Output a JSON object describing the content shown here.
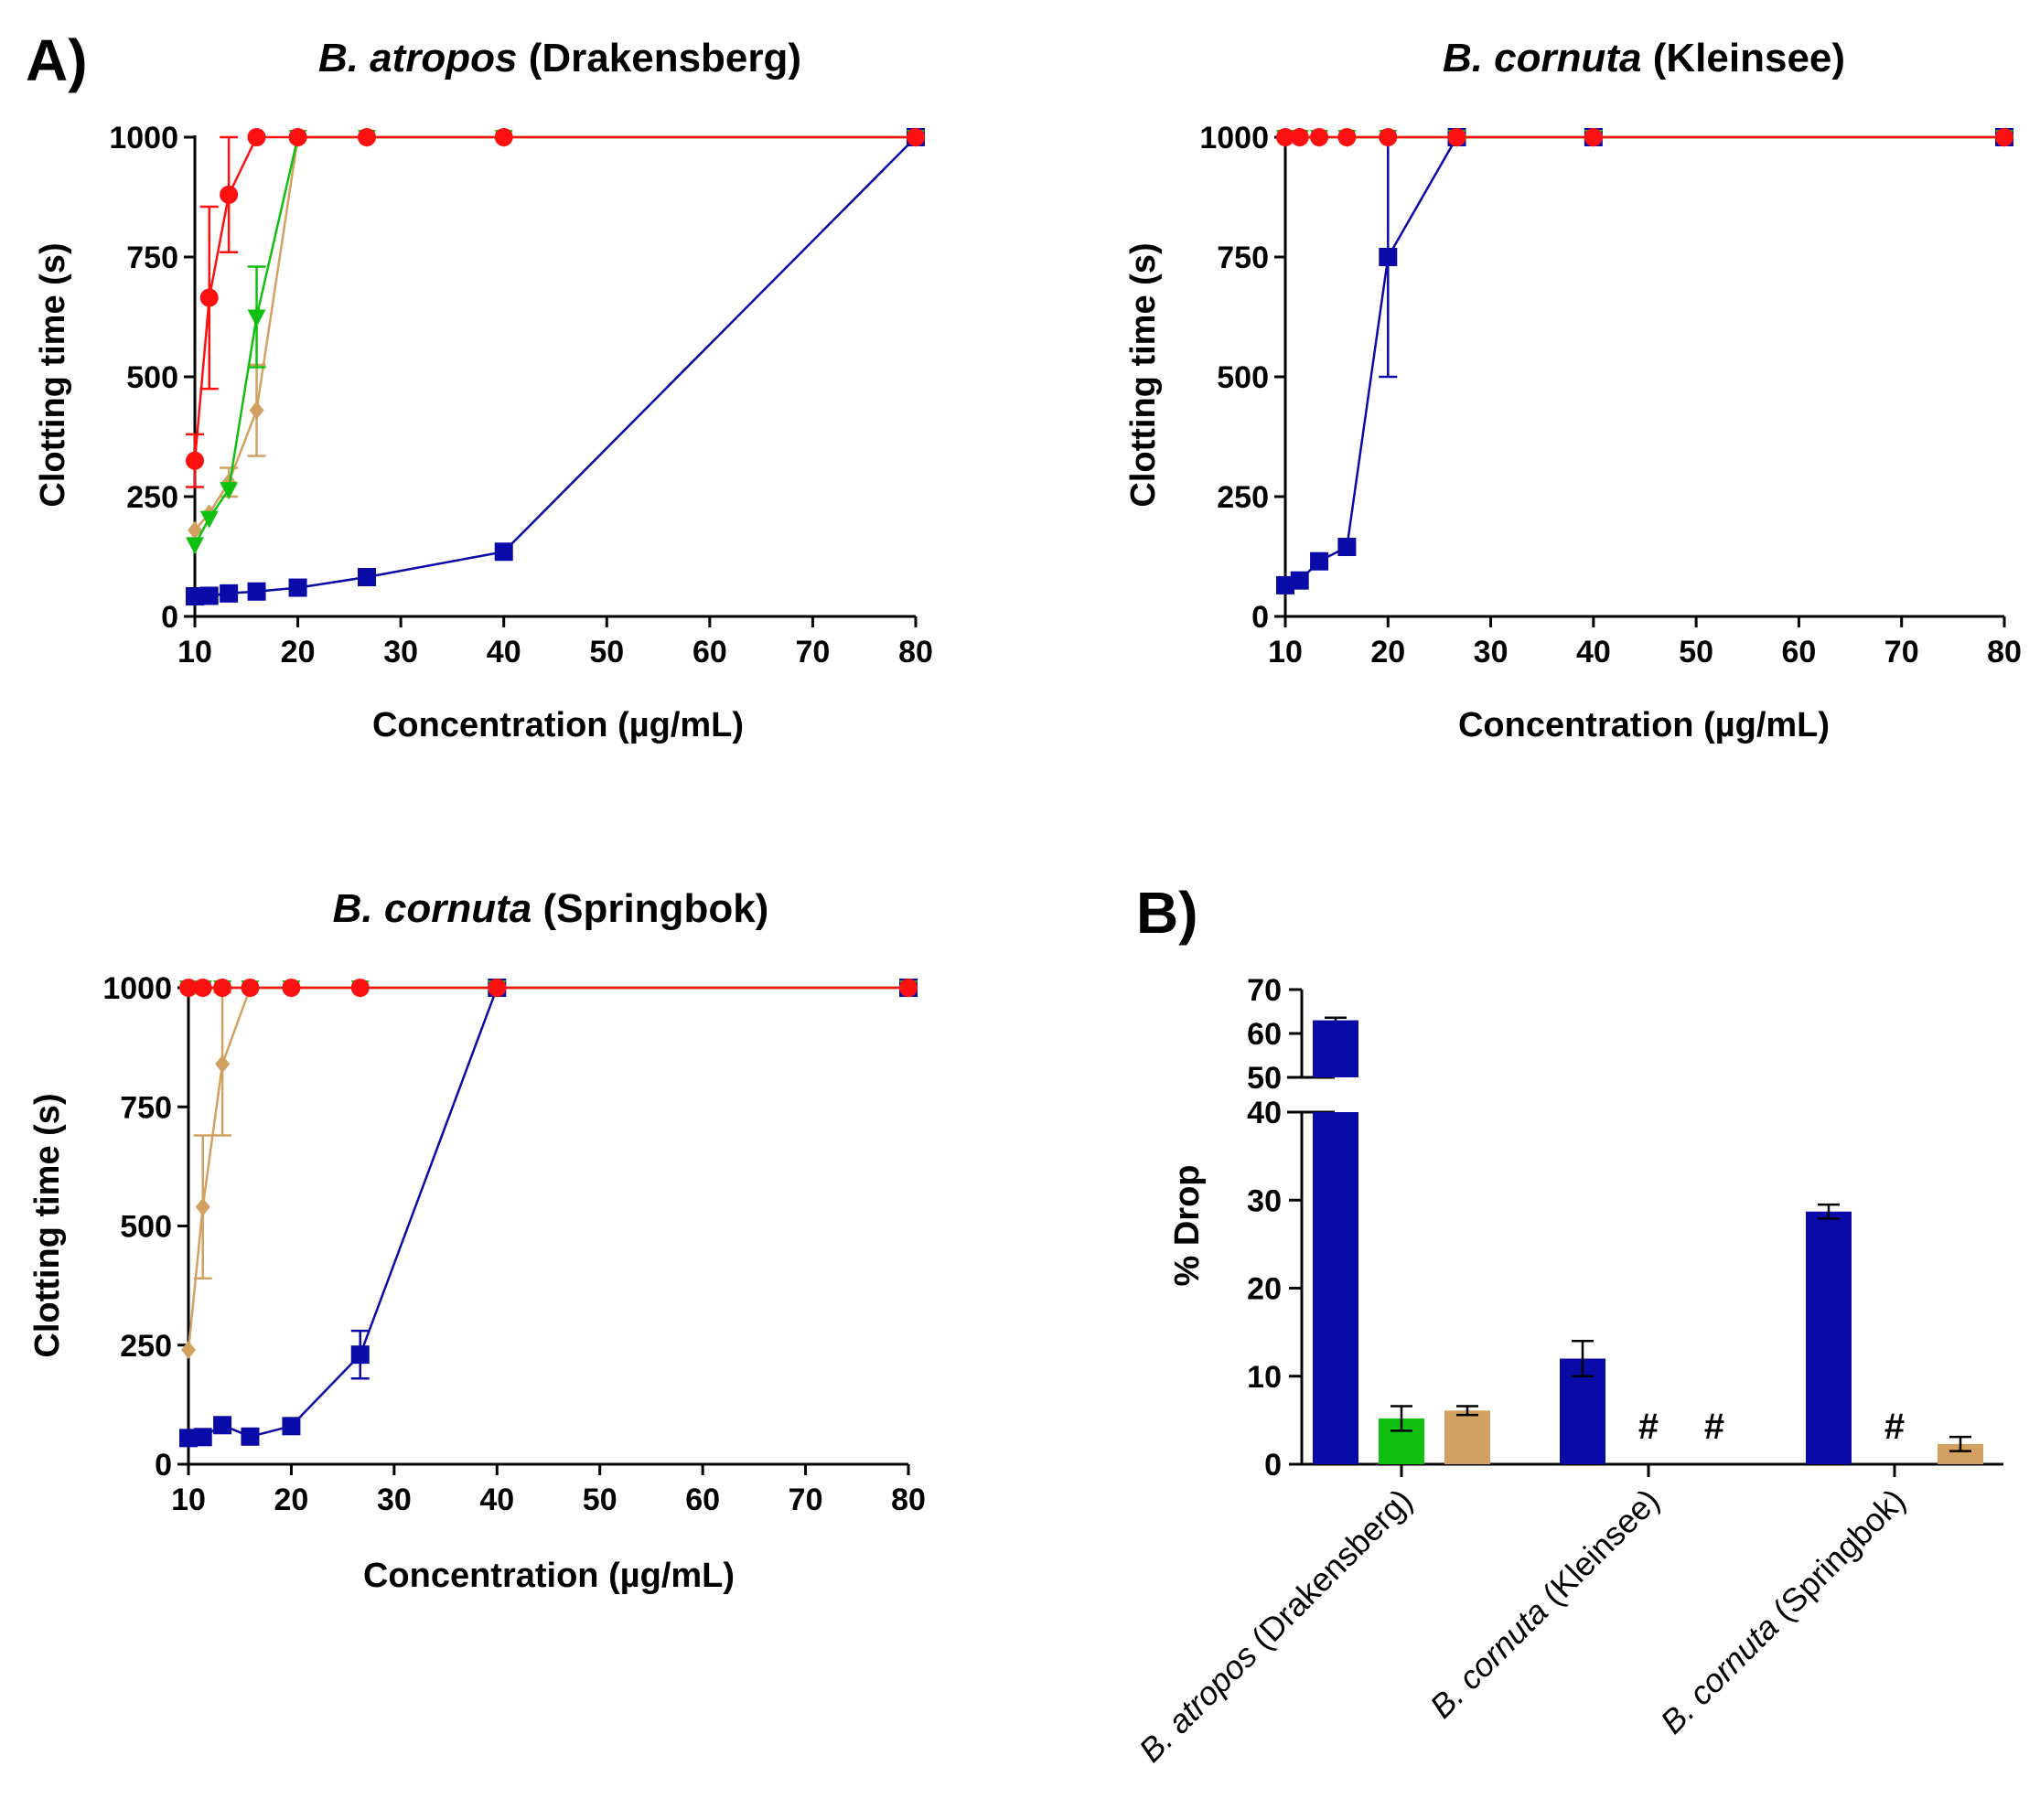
{
  "panel_letters": [
    "A)",
    "B)"
  ],
  "colors": {
    "blue": "#0a0aa8",
    "red": "#ff1010",
    "green": "#10c010",
    "tan": "#d2a060",
    "redLine": "#e02020"
  },
  "chart_data": [
    {
      "type": "line",
      "title_bold": "B. atropos",
      "title_rest": " (Drakensberg)",
      "xlabel": "Concentration (µg/mL)",
      "ylabel": "Clotting time (s)",
      "xlim": [
        10,
        80
      ],
      "ylim": [
        0,
        1000
      ],
      "xticks": [
        10,
        20,
        30,
        40,
        50,
        60,
        70,
        80
      ],
      "yticks": [
        0,
        250,
        500,
        750,
        1000
      ],
      "series": [
        {
          "color": "#0a0aa8",
          "marker": "square",
          "x": [
            10,
            11.4,
            13.3,
            16,
            20,
            26.7,
            40,
            80
          ],
          "y": [
            42,
            43,
            48,
            52,
            60,
            82,
            135,
            1000
          ],
          "err": [
            0,
            0,
            0,
            0,
            0,
            0,
            0,
            0
          ]
        },
        {
          "color": "#d2a060",
          "marker": "diamond",
          "x": [
            10,
            11.4,
            13.3,
            16,
            20,
            26.7,
            40,
            80
          ],
          "y": [
            180,
            215,
            280,
            430,
            1000,
            1000,
            1000,
            1000
          ],
          "err": [
            0,
            0,
            30,
            95,
            0,
            0,
            0,
            0
          ]
        },
        {
          "color": "#10c010",
          "marker": "triangle",
          "x": [
            10,
            11.4,
            13.3,
            16,
            20,
            26.7,
            40,
            80
          ],
          "y": [
            150,
            205,
            265,
            625,
            1000,
            1000,
            1000,
            1000
          ],
          "err": [
            0,
            0,
            0,
            105,
            0,
            0,
            0,
            0
          ]
        },
        {
          "color": "#ff1010",
          "marker": "circle",
          "x": [
            10,
            11.4,
            13.3,
            16,
            20,
            26.7,
            40,
            80
          ],
          "y": [
            325,
            665,
            880,
            1000,
            1000,
            1000,
            1000,
            1000
          ],
          "err": [
            55,
            190,
            120,
            0,
            0,
            0,
            0,
            0
          ]
        }
      ]
    },
    {
      "type": "line",
      "title_bold": "B. cornuta",
      "title_rest": " (Kleinsee)",
      "xlabel": "Concentration (µg/mL)",
      "ylabel": "Clotting time (s)",
      "xlim": [
        10,
        80
      ],
      "ylim": [
        0,
        1000
      ],
      "xticks": [
        10,
        20,
        30,
        40,
        50,
        60,
        70,
        80
      ],
      "yticks": [
        0,
        250,
        500,
        750,
        1000
      ],
      "series": [
        {
          "color": "#0a0aa8",
          "marker": "square",
          "x": [
            10,
            11.4,
            13.3,
            16,
            20,
            26.7,
            40,
            80
          ],
          "y": [
            65,
            75,
            115,
            145,
            750,
            1000,
            1000,
            1000
          ],
          "err": [
            0,
            0,
            0,
            0,
            250,
            0,
            0,
            0
          ]
        },
        {
          "color": "#d2a060",
          "marker": "diamond",
          "x": [
            10,
            11.4,
            13.3,
            16,
            20,
            26.7,
            40,
            80
          ],
          "y": [
            1000,
            1000,
            1000,
            1000,
            1000,
            1000,
            1000,
            1000
          ],
          "err": [
            0,
            0,
            0,
            0,
            0,
            0,
            0,
            0
          ]
        },
        {
          "color": "#10c010",
          "marker": "triangle",
          "x": [
            10,
            11.4,
            13.3,
            16,
            20,
            26.7,
            40,
            80
          ],
          "y": [
            1000,
            1000,
            1000,
            1000,
            1000,
            1000,
            1000,
            1000
          ],
          "err": [
            0,
            0,
            0,
            0,
            0,
            0,
            0,
            0
          ]
        },
        {
          "color": "#ff1010",
          "marker": "circle",
          "x": [
            10,
            11.4,
            13.3,
            16,
            20,
            26.7,
            40,
            80
          ],
          "y": [
            1000,
            1000,
            1000,
            1000,
            1000,
            1000,
            1000,
            1000
          ],
          "err": [
            0,
            0,
            0,
            0,
            0,
            0,
            0,
            0
          ]
        }
      ]
    },
    {
      "type": "line",
      "title_bold": "B. cornuta",
      "title_rest": " (Springbok)",
      "xlabel": "Concentration (µg/mL)",
      "ylabel": "Clotting time (s)",
      "xlim": [
        10,
        80
      ],
      "ylim": [
        0,
        1000
      ],
      "xticks": [
        10,
        20,
        30,
        40,
        50,
        60,
        70,
        80
      ],
      "yticks": [
        0,
        250,
        500,
        750,
        1000
      ],
      "series": [
        {
          "color": "#0a0aa8",
          "marker": "square",
          "x": [
            10,
            11.4,
            13.3,
            16,
            20,
            26.7,
            40,
            80
          ],
          "y": [
            55,
            57,
            82,
            58,
            80,
            230,
            1000,
            1000
          ],
          "err": [
            0,
            0,
            0,
            0,
            0,
            50,
            0,
            0
          ]
        },
        {
          "color": "#d2a060",
          "marker": "diamond",
          "x": [
            10,
            11.4,
            13.3,
            16,
            20,
            26.7,
            40,
            80
          ],
          "y": [
            240,
            540,
            840,
            1000,
            1000,
            1000,
            1000,
            1000
          ],
          "err": [
            0,
            150,
            150,
            0,
            0,
            0,
            0,
            0
          ]
        },
        {
          "color": "#10c010",
          "marker": "triangle",
          "x": [
            10,
            11.4,
            13.3,
            16,
            20,
            26.7,
            40,
            80
          ],
          "y": [
            1000,
            1000,
            1000,
            1000,
            1000,
            1000,
            1000,
            1000
          ],
          "err": [
            0,
            0,
            0,
            0,
            0,
            0,
            0,
            0
          ]
        },
        {
          "color": "#ff1010",
          "marker": "circle",
          "x": [
            10,
            11.4,
            13.3,
            16,
            20,
            26.7,
            40,
            80
          ],
          "y": [
            1000,
            1000,
            1000,
            1000,
            1000,
            1000,
            1000,
            1000
          ],
          "err": [
            0,
            0,
            0,
            0,
            0,
            0,
            0,
            0
          ]
        }
      ]
    },
    {
      "type": "bar",
      "ylabel": "% Drop",
      "y_axis_break": {
        "lower": [
          0,
          40
        ],
        "upper": [
          50,
          70
        ]
      },
      "yticks_lower": [
        0,
        10,
        20,
        30,
        40
      ],
      "yticks_upper": [
        50,
        60,
        70
      ],
      "categories": [
        {
          "it": "B. atropos",
          "rest": " (Drakensberg)"
        },
        {
          "it": "B. cornuta",
          "rest": " (Kleinsee)"
        },
        {
          "it": "B. cornuta",
          "rest": " (Springbok)"
        }
      ],
      "series": [
        {
          "color": "#0a0aa8",
          "values": [
            63,
            12,
            28.7
          ],
          "err": [
            0.6,
            2,
            0.8
          ]
        },
        {
          "color": "#10c010",
          "values": [
            5.2,
            null,
            null
          ],
          "err": [
            1.4,
            0,
            0
          ],
          "marks": [
            "",
            "#",
            "#"
          ]
        },
        {
          "color": "#d2a060",
          "values": [
            6.1,
            null,
            2.3
          ],
          "err": [
            0.5,
            0,
            0.8
          ],
          "marks": [
            "",
            "#",
            ""
          ]
        }
      ]
    }
  ]
}
